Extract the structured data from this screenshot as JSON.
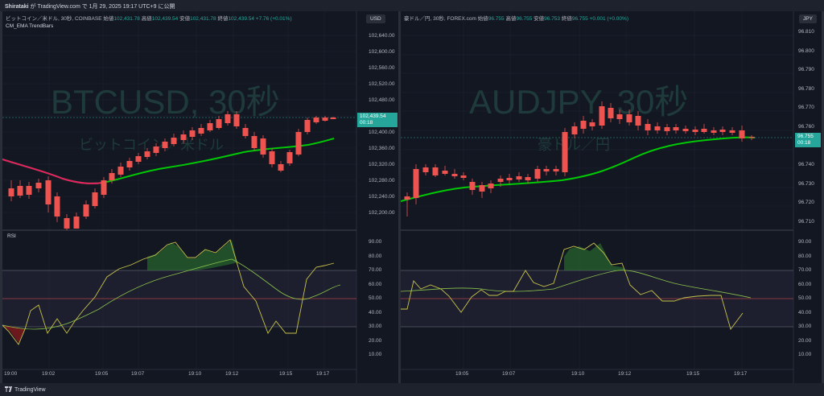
{
  "header": {
    "author": "Shirataki",
    "text": " が TradingView.com で 1月 29, 2025 19:17 UTC+9 に公開"
  },
  "footer": {
    "brand": "TradingView"
  },
  "left": {
    "title": "ビットコイン／米ドル, 30秒, COINBASE",
    "o_label": "始値",
    "o": "102,431.78",
    "h_label": "高値",
    "h": "102,439.54",
    "l_label": "安値",
    "l": "102,431.78",
    "c_label": "終値",
    "c": "102,439.54",
    "chg": "+7.76 (+0.01%)",
    "indicator": "CM_EMA TrendBars",
    "currency": "USD",
    "watermark_main": "BTCUSD, 30秒",
    "watermark_sub": "ビットコイン／米ドル",
    "price_badge": "102,439.54",
    "time_badge": "00:18",
    "rsi_label": "RSI",
    "price_ticks": [
      "102,640.00",
      "102,600.00",
      "102,560.00",
      "102,520.00",
      "102,480.00",
      "102,440.00",
      "102,400.00",
      "102,360.00",
      "102,320.00",
      "102,280.00",
      "102,240.00",
      "102,200.00"
    ],
    "rsi_ticks": [
      "90.00",
      "80.00",
      "70.00",
      "60.00",
      "50.00",
      "40.00",
      "30.00",
      "20.00",
      "10.00"
    ],
    "time_ticks": [
      "19:00",
      "19:02",
      "19:05",
      "19:07",
      "19:10",
      "19:12",
      "19:15",
      "19:17"
    ]
  },
  "right": {
    "title": "豪ドル／円, 30秒, FOREX.com",
    "o_label": "始値",
    "o": "96.755",
    "h_label": "高値",
    "h": "96.755",
    "l_label": "安値",
    "l": "96.753",
    "c_label": "終値",
    "c": "96.755",
    "chg": "+0.001 (+0.00%)",
    "currency": "JPY",
    "watermark_main": "AUDJPY, 30秒",
    "watermark_sub": "豪ドル／円",
    "price_badge": "96.755",
    "time_badge": "00:18",
    "price_ticks": [
      "96.810",
      "96.800",
      "96.790",
      "96.780",
      "96.770",
      "96.760",
      "96.750",
      "96.740",
      "96.730",
      "96.720",
      "96.710"
    ],
    "rsi_ticks": [
      "90.00",
      "80.00",
      "70.00",
      "60.00",
      "50.00",
      "40.00",
      "30.00",
      "20.00",
      "10.00"
    ],
    "time_ticks": [
      "19:05",
      "19:07",
      "19:10",
      "19:12",
      "19:15",
      "19:17"
    ]
  },
  "colors": {
    "up": "#26a69a",
    "down": "#ef5350",
    "ema_up": "#00c805",
    "ema_down": "#e91e63",
    "rsi": "#c8c24a",
    "bg": "#131722"
  }
}
